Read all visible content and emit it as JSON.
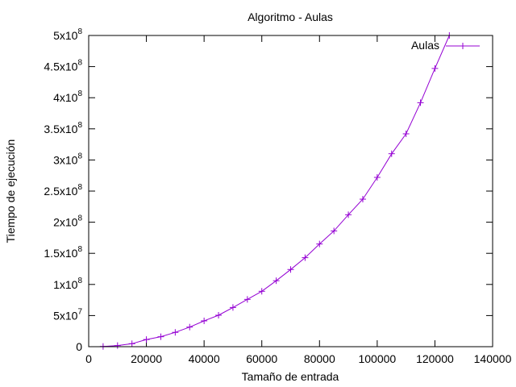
{
  "chart_data": {
    "type": "line",
    "title": "Algoritmo - Aulas",
    "xlabel": "Tamaño de entrada",
    "ylabel": "Tiempo de ejecución",
    "xlim": [
      0,
      140000
    ],
    "ylim": [
      0,
      500000000
    ],
    "grid": false,
    "legend_position": "top-right",
    "x_ticks": [
      {
        "value": 0,
        "label": "0"
      },
      {
        "value": 20000,
        "label": "20000"
      },
      {
        "value": 40000,
        "label": "40000"
      },
      {
        "value": 60000,
        "label": "60000"
      },
      {
        "value": 80000,
        "label": "80000"
      },
      {
        "value": 100000,
        "label": "100000"
      },
      {
        "value": 120000,
        "label": "120000"
      },
      {
        "value": 140000,
        "label": "140000"
      }
    ],
    "y_ticks": [
      {
        "value": 0,
        "mantissa": "0",
        "exp": ""
      },
      {
        "value": 50000000,
        "mantissa": "5x10",
        "exp": "7"
      },
      {
        "value": 100000000,
        "mantissa": "1x10",
        "exp": "8"
      },
      {
        "value": 150000000,
        "mantissa": "1.5x10",
        "exp": "8"
      },
      {
        "value": 200000000,
        "mantissa": "2x10",
        "exp": "8"
      },
      {
        "value": 250000000,
        "mantissa": "2.5x10",
        "exp": "8"
      },
      {
        "value": 300000000,
        "mantissa": "3x10",
        "exp": "8"
      },
      {
        "value": 350000000,
        "mantissa": "3.5x10",
        "exp": "8"
      },
      {
        "value": 400000000,
        "mantissa": "4x10",
        "exp": "8"
      },
      {
        "value": 450000000,
        "mantissa": "4.5x10",
        "exp": "8"
      },
      {
        "value": 500000000,
        "mantissa": "5x10",
        "exp": "8"
      }
    ],
    "series": [
      {
        "name": "Aulas",
        "color": "#9400d3",
        "marker": "plus",
        "x": [
          5000,
          10000,
          15000,
          20000,
          25000,
          30000,
          35000,
          40000,
          45000,
          50000,
          55000,
          60000,
          65000,
          70000,
          75000,
          80000,
          85000,
          90000,
          95000,
          100000,
          105000,
          110000,
          115000,
          120000,
          125000
        ],
        "y": [
          400000,
          1800000,
          4800000,
          11500000,
          16000000,
          23000000,
          31500000,
          41500000,
          50500000,
          63000000,
          76000000,
          89000000,
          106000000,
          124000000,
          143000000,
          165000000,
          186000000,
          212000000,
          237000000,
          272000000,
          310000000,
          342000000,
          392000000,
          447000000,
          500000000
        ]
      }
    ]
  }
}
